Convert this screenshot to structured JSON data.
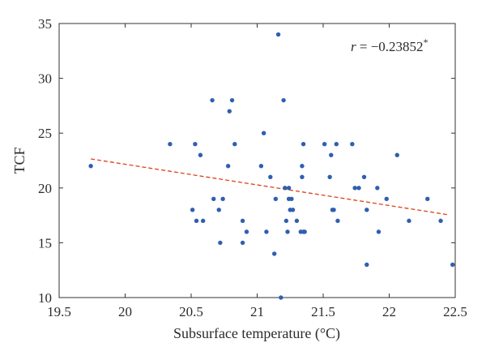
{
  "chart_data": {
    "type": "scatter",
    "xlabel": "Subsurface temperature (°C)",
    "ylabel": "TCF",
    "xlim": [
      19.5,
      22.5
    ],
    "ylim": [
      10,
      35
    ],
    "xticks": [
      19.5,
      20,
      20.5,
      21,
      21.5,
      22,
      22.5
    ],
    "yticks": [
      10,
      15,
      20,
      25,
      30,
      35
    ],
    "xtick_labels": [
      "19.5",
      "20",
      "20.5",
      "21",
      "21.5",
      "22",
      "22.5"
    ],
    "ytick_labels": [
      "10",
      "15",
      "20",
      "25",
      "30",
      "35"
    ],
    "annotation": {
      "label": "r",
      "value": " = −0.23852",
      "suffix": "*",
      "position": "top-right"
    },
    "grid": false,
    "legend": "none",
    "colors": {
      "points": "#2f5fb0",
      "trend": "#d9421a",
      "axis": "#333333"
    },
    "trend_line": {
      "style": "dashed",
      "x": [
        19.74,
        22.45
      ],
      "y": [
        22.65,
        17.55
      ]
    },
    "points": [
      [
        19.74,
        22
      ],
      [
        20.34,
        24
      ],
      [
        20.51,
        18
      ],
      [
        20.53,
        24
      ],
      [
        20.54,
        17
      ],
      [
        20.57,
        23
      ],
      [
        20.59,
        17
      ],
      [
        20.66,
        28
      ],
      [
        20.67,
        19
      ],
      [
        20.71,
        18
      ],
      [
        20.72,
        15
      ],
      [
        20.74,
        19
      ],
      [
        20.78,
        22
      ],
      [
        20.79,
        27
      ],
      [
        20.81,
        28
      ],
      [
        20.83,
        24
      ],
      [
        20.89,
        17
      ],
      [
        20.89,
        15
      ],
      [
        20.92,
        16
      ],
      [
        21.03,
        22
      ],
      [
        21.05,
        25
      ],
      [
        21.07,
        16
      ],
      [
        21.1,
        21
      ],
      [
        21.13,
        14
      ],
      [
        21.14,
        19
      ],
      [
        21.16,
        34
      ],
      [
        21.18,
        10
      ],
      [
        21.2,
        28
      ],
      [
        21.21,
        20
      ],
      [
        21.22,
        17
      ],
      [
        21.23,
        16
      ],
      [
        21.24,
        20
      ],
      [
        21.24,
        19
      ],
      [
        21.25,
        18
      ],
      [
        21.26,
        19
      ],
      [
        21.27,
        18
      ],
      [
        21.3,
        17
      ],
      [
        21.33,
        16
      ],
      [
        21.34,
        21
      ],
      [
        21.34,
        22
      ],
      [
        21.35,
        24
      ],
      [
        21.35,
        16
      ],
      [
        21.36,
        16
      ],
      [
        21.51,
        24
      ],
      [
        21.55,
        21
      ],
      [
        21.56,
        23
      ],
      [
        21.57,
        18
      ],
      [
        21.58,
        18
      ],
      [
        21.6,
        24
      ],
      [
        21.61,
        17
      ],
      [
        21.72,
        24
      ],
      [
        21.74,
        20
      ],
      [
        21.77,
        20
      ],
      [
        21.81,
        21
      ],
      [
        21.83,
        18
      ],
      [
        21.83,
        13
      ],
      [
        21.91,
        20
      ],
      [
        21.92,
        16
      ],
      [
        21.98,
        19
      ],
      [
        22.06,
        23
      ],
      [
        22.15,
        17
      ],
      [
        22.29,
        19
      ],
      [
        22.39,
        17
      ],
      [
        22.48,
        13
      ]
    ]
  }
}
